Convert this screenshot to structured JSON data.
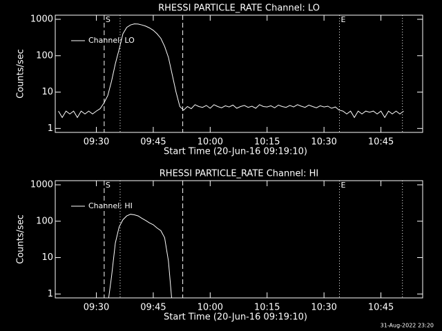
{
  "footer": "31-Aug-2022 23:20",
  "chart_data": [
    {
      "type": "line",
      "title": "RHESSI PARTICLE_RATE Channel: LO",
      "x_label": "Start Time (20-Jun-16 09:19:10)",
      "y_label": "Counts/sec",
      "x": [
        "09:20",
        "09:21",
        "09:22",
        "09:23",
        "09:24",
        "09:25",
        "09:26",
        "09:27",
        "09:28",
        "09:29",
        "09:30",
        "09:31",
        "09:32",
        "09:33",
        "09:34",
        "09:35",
        "09:36",
        "09:37",
        "09:38",
        "09:39",
        "09:40",
        "09:41",
        "09:42",
        "09:43",
        "09:44",
        "09:45",
        "09:46",
        "09:47",
        "09:48",
        "09:49",
        "09:50",
        "09:51",
        "09:52",
        "09:53",
        "09:54",
        "09:55",
        "09:56",
        "09:57",
        "09:58",
        "09:59",
        "10:00",
        "10:01",
        "10:02",
        "10:03",
        "10:04",
        "10:05",
        "10:06",
        "10:07",
        "10:08",
        "10:09",
        "10:10",
        "10:11",
        "10:12",
        "10:13",
        "10:14",
        "10:15",
        "10:16",
        "10:17",
        "10:18",
        "10:19",
        "10:20",
        "10:21",
        "10:22",
        "10:23",
        "10:24",
        "10:25",
        "10:26",
        "10:27",
        "10:28",
        "10:29",
        "10:30",
        "10:31",
        "10:32",
        "10:33",
        "10:34",
        "10:35",
        "10:36",
        "10:37",
        "10:38",
        "10:39",
        "10:40",
        "10:41",
        "10:42",
        "10:43",
        "10:44",
        "10:45",
        "10:46",
        "10:47",
        "10:48",
        "10:49",
        "10:50",
        "10:51"
      ],
      "series": [
        {
          "name": "Channel: LO",
          "color": "#ffffff",
          "values": [
            3,
            2,
            3,
            2.5,
            3,
            2,
            3,
            2.5,
            3,
            2.5,
            3,
            3.5,
            5,
            8,
            20,
            60,
            150,
            400,
            600,
            700,
            750,
            740,
            700,
            650,
            580,
            500,
            400,
            300,
            180,
            90,
            30,
            10,
            4,
            3.2,
            4,
            3.5,
            4.5,
            4,
            3.8,
            4.3,
            3.6,
            4.5,
            4,
            3.7,
            4.2,
            3.9,
            4.4,
            3.6,
            4,
            4.3,
            3.8,
            4.1,
            3.6,
            4.5,
            4,
            3.9,
            4.2,
            3.7,
            4.4,
            4,
            3.8,
            4.3,
            3.9,
            4.5,
            4.1,
            3.8,
            4.4,
            4,
            3.7,
            4.2,
            3.9,
            4.1,
            3.6,
            3.9,
            3.2,
            3,
            2.5,
            3,
            2,
            3,
            2.5,
            3,
            2.8,
            3,
            2.5,
            3,
            2,
            3,
            2.5,
            3,
            2.5,
            3
          ]
        }
      ],
      "xlim": [
        "09:19:10",
        "10:56:00"
      ],
      "xticks": [
        "09:30",
        "09:45",
        "10:00",
        "10:15",
        "10:30",
        "10:45"
      ],
      "ylim": [
        0.78,
        1300
      ],
      "yticks": [
        1,
        10,
        100,
        1000
      ],
      "log_y": true,
      "legend": "upper left",
      "vlines": [
        {
          "x": "09:32:04",
          "style": "dashed",
          "label": "S"
        },
        {
          "x": "09:36:16",
          "style": "dotted"
        },
        {
          "x": "09:52:46",
          "style": "dashed"
        },
        {
          "x": "10:34:04",
          "style": "dotted",
          "label": "E"
        },
        {
          "x": "10:50:40",
          "style": "dotted"
        }
      ]
    },
    {
      "type": "line",
      "title": "RHESSI PARTICLE_RATE Channel: HI",
      "x_label": "Start Time (20-Jun-16 09:19:10)",
      "y_label": "Counts/sec",
      "x": [
        "09:33",
        "09:34",
        "09:35",
        "09:36",
        "09:37",
        "09:38",
        "09:39",
        "09:40",
        "09:41",
        "09:42",
        "09:43",
        "09:44",
        "09:45",
        "09:46",
        "09:47",
        "09:48",
        "09:49",
        "09:50"
      ],
      "series": [
        {
          "name": "Channel: HI",
          "color": "#ffffff",
          "values": [
            0.5,
            3,
            25,
            70,
            110,
            140,
            155,
            150,
            140,
            120,
            105,
            90,
            80,
            65,
            55,
            35,
            8,
            0.5
          ]
        }
      ],
      "xlim": [
        "09:19:10",
        "10:56:00"
      ],
      "xticks": [
        "09:30",
        "09:45",
        "10:00",
        "10:15",
        "10:30",
        "10:45"
      ],
      "ylim": [
        0.78,
        1300
      ],
      "yticks": [
        1,
        10,
        100,
        1000
      ],
      "log_y": true,
      "legend": "upper left",
      "vlines": [
        {
          "x": "09:32:04",
          "style": "dashed",
          "label": "S"
        },
        {
          "x": "09:36:16",
          "style": "dotted"
        },
        {
          "x": "09:52:46",
          "style": "dashed"
        },
        {
          "x": "10:34:04",
          "style": "dotted",
          "label": "E"
        },
        {
          "x": "10:50:40",
          "style": "dotted"
        }
      ]
    }
  ]
}
